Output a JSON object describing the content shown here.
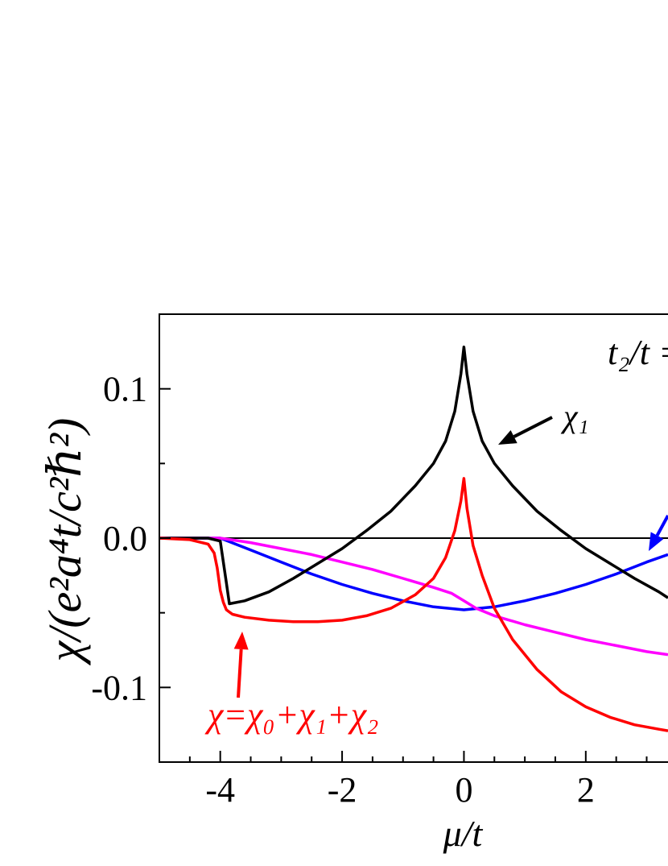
{
  "chart_data": {
    "type": "line",
    "xlabel": "μ/t",
    "ylabel": "χ/(e²a⁴t/c²ℏ²)",
    "xlim": [
      -5,
      3.35
    ],
    "ylim": [
      -0.15,
      0.15
    ],
    "x_ticks": [
      -4,
      -2,
      0,
      2
    ],
    "x_tick_labels": [
      "-4",
      "-2",
      "0",
      "2"
    ],
    "y_ticks": [
      -0.1,
      0.0,
      0.1
    ],
    "y_tick_labels": [
      "-0.1",
      "0.0",
      "0.1"
    ],
    "grid": false,
    "reference_line_y": 0,
    "series": [
      {
        "name": "χ₁",
        "color": "#000000",
        "x": [
          -5,
          -4.2,
          -4.0,
          -3.9,
          -3.85,
          -3.6,
          -3.2,
          -2.8,
          -2.4,
          -2.0,
          -1.6,
          -1.2,
          -0.8,
          -0.5,
          -0.3,
          -0.15,
          -0.05,
          0,
          0.05,
          0.15,
          0.3,
          0.5,
          0.8,
          1.2,
          1.6,
          2.0,
          2.4,
          2.8,
          3.2,
          3.35
        ],
        "y": [
          0,
          0,
          -0.002,
          -0.03,
          -0.044,
          -0.042,
          -0.036,
          -0.027,
          -0.017,
          -0.007,
          0.005,
          0.018,
          0.035,
          0.05,
          0.065,
          0.085,
          0.11,
          0.128,
          0.11,
          0.085,
          0.065,
          0.05,
          0.035,
          0.018,
          0.005,
          -0.007,
          -0.017,
          -0.027,
          -0.036,
          -0.04
        ]
      },
      {
        "name": "χ",
        "color": "#ff0000",
        "x": [
          -5,
          -4.5,
          -4.2,
          -4.1,
          -4.05,
          -4.0,
          -3.95,
          -3.9,
          -3.8,
          -3.6,
          -3.2,
          -2.8,
          -2.4,
          -2.0,
          -1.6,
          -1.2,
          -0.8,
          -0.5,
          -0.3,
          -0.15,
          -0.05,
          0,
          0.05,
          0.15,
          0.3,
          0.5,
          0.8,
          1.2,
          1.6,
          2.0,
          2.4,
          2.8,
          3.2,
          3.35
        ],
        "y": [
          0,
          -0.001,
          -0.004,
          -0.01,
          -0.02,
          -0.035,
          -0.043,
          -0.048,
          -0.051,
          -0.053,
          -0.055,
          -0.056,
          -0.056,
          -0.055,
          -0.052,
          -0.047,
          -0.038,
          -0.027,
          -0.013,
          0.005,
          0.025,
          0.04,
          0.02,
          -0.005,
          -0.025,
          -0.047,
          -0.068,
          -0.088,
          -0.103,
          -0.113,
          -0.12,
          -0.125,
          -0.128,
          -0.129
        ]
      },
      {
        "name": "blue",
        "color": "#0000ff",
        "x": [
          -5,
          -4.5,
          -4.0,
          -3.5,
          -3.0,
          -2.5,
          -2.0,
          -1.5,
          -1.0,
          -0.5,
          0,
          0.5,
          1.0,
          1.5,
          2.0,
          2.5,
          3.0,
          3.35
        ],
        "y": [
          0,
          0,
          0,
          -0.008,
          -0.016,
          -0.024,
          -0.031,
          -0.037,
          -0.042,
          -0.046,
          -0.048,
          -0.046,
          -0.042,
          -0.037,
          -0.031,
          -0.024,
          -0.016,
          -0.011
        ]
      },
      {
        "name": "magenta",
        "color": "#ff00ff",
        "x": [
          -5,
          -4.5,
          -4.0,
          -3.5,
          -3.0,
          -2.5,
          -2.0,
          -1.5,
          -1.0,
          -0.5,
          -0.2,
          0,
          0.2,
          0.5,
          1.0,
          1.5,
          2.0,
          2.5,
          3.0,
          3.35
        ],
        "y": [
          0,
          0,
          0,
          -0.003,
          -0.007,
          -0.011,
          -0.016,
          -0.021,
          -0.027,
          -0.033,
          -0.037,
          -0.042,
          -0.047,
          -0.052,
          -0.058,
          -0.063,
          -0.068,
          -0.072,
          -0.076,
          -0.078
        ]
      }
    ],
    "annotations": [
      {
        "text": "χ₁",
        "color": "#000000"
      },
      {
        "text": "χ=χ₀+χ₁+χ₂",
        "color": "#ff0000"
      },
      {
        "text": "t₂/t =",
        "color": "#000000"
      }
    ]
  }
}
